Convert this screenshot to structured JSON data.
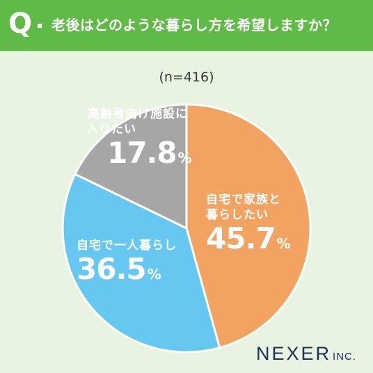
{
  "header": {
    "q_letter": "Q",
    "question": "老後はどのような暮らし方を希望しますか？"
  },
  "sample_size": "(n=416)",
  "logo": {
    "main": "NEXER",
    "suffix": "INC."
  },
  "colors": {
    "header_bg": "#5fba47",
    "page_bg": "#e9f3e2",
    "slice_orange": "#f2a261",
    "slice_blue": "#66c8f0",
    "slice_gray": "#a6a6a6",
    "logo": "#1d2f5a"
  },
  "chart_data": {
    "type": "pie",
    "title": "老後はどのような暮らし方を希望しますか？",
    "n_label": "(n=416)",
    "slices": [
      {
        "label_line1": "自宅で家族と",
        "label_line2": "暮らしたい",
        "value": 45.7,
        "value_text": "45.7",
        "unit": "%",
        "color": "#f2a261"
      },
      {
        "label_line1": "自宅で一人暮らし",
        "label_line2": "",
        "value": 36.5,
        "value_text": "36.5",
        "unit": "%",
        "color": "#66c8f0"
      },
      {
        "label_line1": "高齢者向け施設に",
        "label_line2": "入りたい",
        "value": 17.8,
        "value_text": "17.8",
        "unit": "%",
        "color": "#a6a6a6"
      }
    ]
  }
}
